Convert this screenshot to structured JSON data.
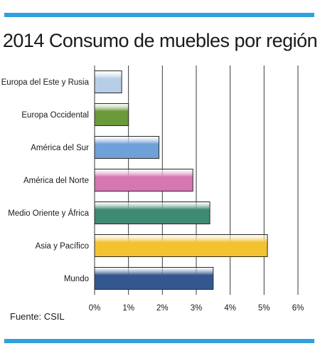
{
  "chart_data": {
    "type": "bar",
    "orientation": "horizontal",
    "title": "2014 Consumo de muebles por región",
    "categories": [
      "Europa del Este y Rusia",
      "Europa Occidental",
      "América del Sur",
      "América del Norte",
      "Medio Oriente y África",
      "Asia y Pacífico",
      "Mundo"
    ],
    "values": [
      0.8,
      1.0,
      1.9,
      2.9,
      3.4,
      5.1,
      3.5
    ],
    "colors": [
      "#b8cde6",
      "#6a9a3a",
      "#6fa0d8",
      "#d577b0",
      "#3f8a74",
      "#f2c231",
      "#33578e"
    ],
    "x_ticks": [
      "0%",
      "1%",
      "2%",
      "3%",
      "4%",
      "5%",
      "6%"
    ],
    "xlim": [
      0,
      6
    ],
    "grid": "vertical",
    "xlabel": "",
    "ylabel": ""
  },
  "source": "Fuente: CSIL",
  "accent_color": "#2fa1dc"
}
